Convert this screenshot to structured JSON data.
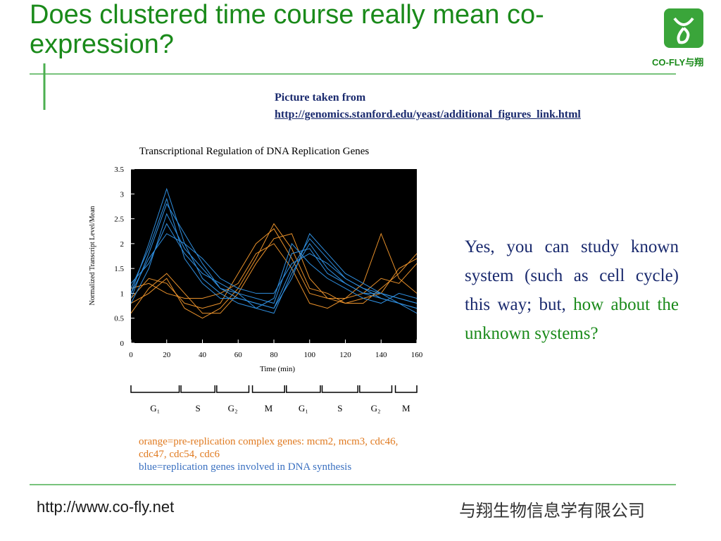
{
  "header": {
    "title": "Does clustered time course really mean co-expression?",
    "logo_text": "CO-FLY与翔"
  },
  "source": {
    "label": "Picture taken from",
    "url": "http://genomics.stanford.edu/yeast/additional_figures_link.html"
  },
  "chart_data": {
    "type": "line",
    "title": "Transcriptional Regulation of DNA Replication Genes",
    "x_label": "Time (min)",
    "y_label": "Normalized Transcript Level/Mean",
    "x": [
      0,
      10,
      20,
      30,
      40,
      50,
      60,
      70,
      80,
      90,
      100,
      110,
      120,
      130,
      140,
      150,
      160
    ],
    "xlim": [
      0,
      160
    ],
    "xticks": [
      0,
      20,
      40,
      60,
      80,
      100,
      120,
      140,
      160
    ],
    "ylim": [
      0,
      3.5
    ],
    "yticks": [
      0,
      0.5,
      1,
      1.5,
      2,
      2.5,
      3,
      3.5
    ],
    "background": "#000000",
    "series": [
      {
        "color": "#e8902a",
        "values": [
          0.9,
          1.3,
          1.2,
          0.8,
          0.7,
          0.8,
          1.4,
          2.0,
          2.3,
          1.7,
          1.0,
          0.9,
          0.9,
          1.0,
          1.3,
          1.2,
          1.6
        ]
      },
      {
        "color": "#e8902a",
        "values": [
          0.6,
          1.1,
          1.4,
          1.0,
          0.6,
          0.6,
          1.0,
          1.6,
          2.1,
          2.2,
          1.3,
          0.9,
          0.8,
          0.8,
          1.1,
          1.4,
          1.8
        ]
      },
      {
        "color": "#e8902a",
        "values": [
          1.1,
          1.2,
          1.0,
          0.9,
          0.9,
          1.0,
          1.2,
          1.8,
          2.0,
          1.5,
          0.8,
          0.7,
          0.9,
          1.2,
          2.2,
          1.3,
          1.0
        ]
      },
      {
        "color": "#e8902a",
        "values": [
          0.8,
          1.0,
          1.3,
          0.7,
          0.5,
          0.7,
          1.1,
          1.7,
          2.4,
          1.9,
          1.1,
          1.0,
          0.8,
          0.9,
          1.0,
          1.5,
          1.7
        ]
      },
      {
        "color": "#2f8fe0",
        "values": [
          1.0,
          2.0,
          3.1,
          2.0,
          1.3,
          1.0,
          0.8,
          0.7,
          0.6,
          1.4,
          2.0,
          1.5,
          1.2,
          1.0,
          0.9,
          0.8,
          0.7
        ]
      },
      {
        "color": "#2f8fe0",
        "values": [
          0.9,
          1.8,
          2.8,
          2.2,
          1.6,
          1.1,
          0.9,
          0.8,
          0.7,
          1.5,
          2.1,
          1.7,
          1.3,
          1.1,
          0.9,
          0.8,
          0.6
        ]
      },
      {
        "color": "#2f8fe0",
        "values": [
          1.2,
          1.6,
          2.4,
          1.8,
          1.4,
          1.2,
          1.0,
          0.9,
          0.8,
          1.8,
          1.9,
          1.4,
          1.2,
          1.0,
          1.0,
          0.9,
          0.8
        ]
      },
      {
        "color": "#2f8fe0",
        "values": [
          0.8,
          1.5,
          2.6,
          1.9,
          1.5,
          1.1,
          1.0,
          0.7,
          0.9,
          2.0,
          1.6,
          1.3,
          1.1,
          0.9,
          0.8,
          1.0,
          0.9
        ]
      },
      {
        "color": "#2f8fe0",
        "values": [
          1.1,
          1.9,
          2.9,
          1.7,
          1.2,
          0.9,
          0.9,
          0.8,
          0.7,
          1.3,
          2.2,
          1.8,
          1.4,
          1.2,
          1.0,
          0.9,
          0.8
        ]
      },
      {
        "color": "#2f8fe0",
        "values": [
          1.0,
          1.7,
          2.2,
          2.0,
          1.7,
          1.3,
          1.1,
          1.0,
          1.0,
          1.6,
          1.8,
          1.6,
          1.3,
          1.1,
          1.0,
          0.8,
          0.7
        ]
      }
    ],
    "phases": [
      {
        "label": "G₁",
        "start": 0,
        "end": 27
      },
      {
        "label": "S",
        "start": 28,
        "end": 47
      },
      {
        "label": "G₂",
        "start": 48,
        "end": 66
      },
      {
        "label": "M",
        "start": 68,
        "end": 86
      },
      {
        "label": "G₁",
        "start": 87,
        "end": 106
      },
      {
        "label": "S",
        "start": 107,
        "end": 127
      },
      {
        "label": "G₂",
        "start": 128,
        "end": 146
      },
      {
        "label": "M",
        "start": 148,
        "end": 160
      }
    ],
    "notes": {
      "orange": "orange=pre-replication complex genes: mcm2, mcm3, cdc46, cdc47, cdc54, cdc6",
      "blue": "blue=replication genes involved in DNA synthesis"
    }
  },
  "body": {
    "text": "Yes, you can study known system (such as cell cycle) this way; but,",
    "highlight": "how about the unknown systems?"
  },
  "footer": {
    "url": "http://www.co-fly.net",
    "company": "与翔生物信息学有限公司"
  }
}
